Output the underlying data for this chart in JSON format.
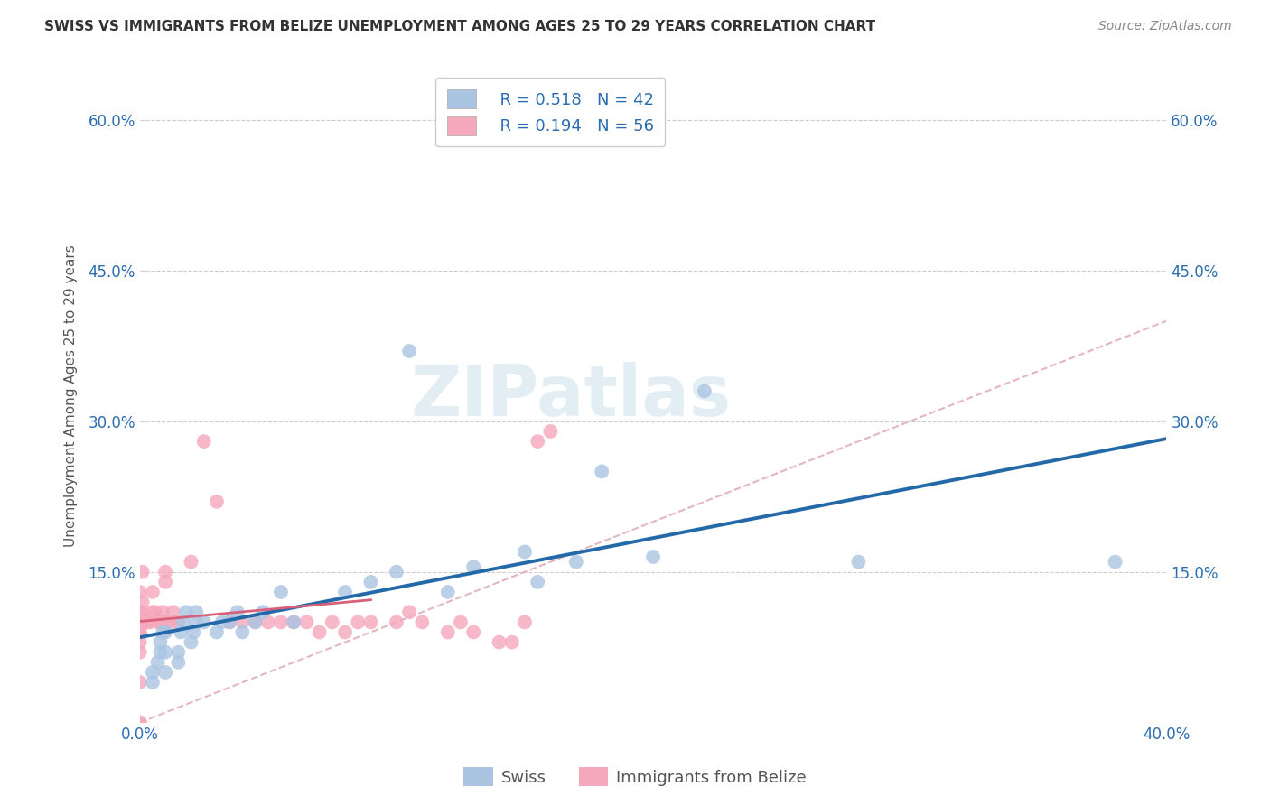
{
  "title": "SWISS VS IMMIGRANTS FROM BELIZE UNEMPLOYMENT AMONG AGES 25 TO 29 YEARS CORRELATION CHART",
  "source": "Source: ZipAtlas.com",
  "ylabel": "Unemployment Among Ages 25 to 29 years",
  "xlim": [
    0.0,
    0.4
  ],
  "ylim": [
    0.0,
    0.65
  ],
  "yticks": [
    0.0,
    0.15,
    0.3,
    0.45,
    0.6
  ],
  "ytick_labels": [
    "",
    "15.0%",
    "30.0%",
    "45.0%",
    "60.0%"
  ],
  "xticks": [
    0.0,
    0.1,
    0.2,
    0.3,
    0.4
  ],
  "xtick_labels": [
    "0.0%",
    "",
    "",
    "",
    "40.0%"
  ],
  "legend_labels": [
    "Swiss",
    "Immigrants from Belize"
  ],
  "swiss_color": "#aac4e2",
  "belize_color": "#f5a8bc",
  "swiss_line_color": "#2369a8",
  "belize_line_color": "#d9607a",
  "diagonal_color": "#e0b0b8",
  "watermark_text": "ZIPatlas",
  "R_swiss": 0.518,
  "N_swiss": 42,
  "R_belize": 0.194,
  "N_belize": 56,
  "swiss_x": [
    0.005,
    0.005,
    0.007,
    0.008,
    0.008,
    0.009,
    0.01,
    0.01,
    0.01,
    0.015,
    0.015,
    0.016,
    0.017,
    0.018,
    0.02,
    0.021,
    0.022,
    0.022,
    0.025,
    0.03,
    0.032,
    0.035,
    0.038,
    0.04,
    0.045,
    0.048,
    0.055,
    0.06,
    0.08,
    0.09,
    0.1,
    0.105,
    0.12,
    0.13,
    0.15,
    0.155,
    0.17,
    0.18,
    0.2,
    0.22,
    0.28,
    0.38
  ],
  "swiss_y": [
    0.04,
    0.05,
    0.06,
    0.07,
    0.08,
    0.09,
    0.05,
    0.07,
    0.09,
    0.06,
    0.07,
    0.09,
    0.1,
    0.11,
    0.08,
    0.09,
    0.1,
    0.11,
    0.1,
    0.09,
    0.1,
    0.1,
    0.11,
    0.09,
    0.1,
    0.11,
    0.13,
    0.1,
    0.13,
    0.14,
    0.15,
    0.37,
    0.13,
    0.155,
    0.17,
    0.14,
    0.16,
    0.25,
    0.165,
    0.33,
    0.16,
    0.16
  ],
  "belize_x": [
    0.0,
    0.0,
    0.0,
    0.0,
    0.0,
    0.0,
    0.0,
    0.0,
    0.0,
    0.0,
    0.001,
    0.001,
    0.001,
    0.001,
    0.001,
    0.002,
    0.003,
    0.004,
    0.005,
    0.005,
    0.006,
    0.007,
    0.008,
    0.009,
    0.01,
    0.01,
    0.01,
    0.012,
    0.013,
    0.015,
    0.02,
    0.025,
    0.03,
    0.035,
    0.04,
    0.045,
    0.05,
    0.055,
    0.06,
    0.065,
    0.07,
    0.075,
    0.08,
    0.085,
    0.09,
    0.1,
    0.105,
    0.11,
    0.12,
    0.125,
    0.13,
    0.14,
    0.145,
    0.15,
    0.155,
    0.16
  ],
  "belize_y": [
    0.0,
    0.0,
    0.04,
    0.07,
    0.08,
    0.09,
    0.09,
    0.1,
    0.11,
    0.13,
    0.1,
    0.1,
    0.11,
    0.12,
    0.15,
    0.1,
    0.1,
    0.1,
    0.11,
    0.13,
    0.11,
    0.1,
    0.1,
    0.11,
    0.1,
    0.14,
    0.15,
    0.1,
    0.11,
    0.1,
    0.16,
    0.28,
    0.22,
    0.1,
    0.1,
    0.1,
    0.1,
    0.1,
    0.1,
    0.1,
    0.09,
    0.1,
    0.09,
    0.1,
    0.1,
    0.1,
    0.11,
    0.1,
    0.09,
    0.1,
    0.09,
    0.08,
    0.08,
    0.1,
    0.28,
    0.29
  ],
  "background_color": "#ffffff",
  "grid_color": "#cccccc"
}
